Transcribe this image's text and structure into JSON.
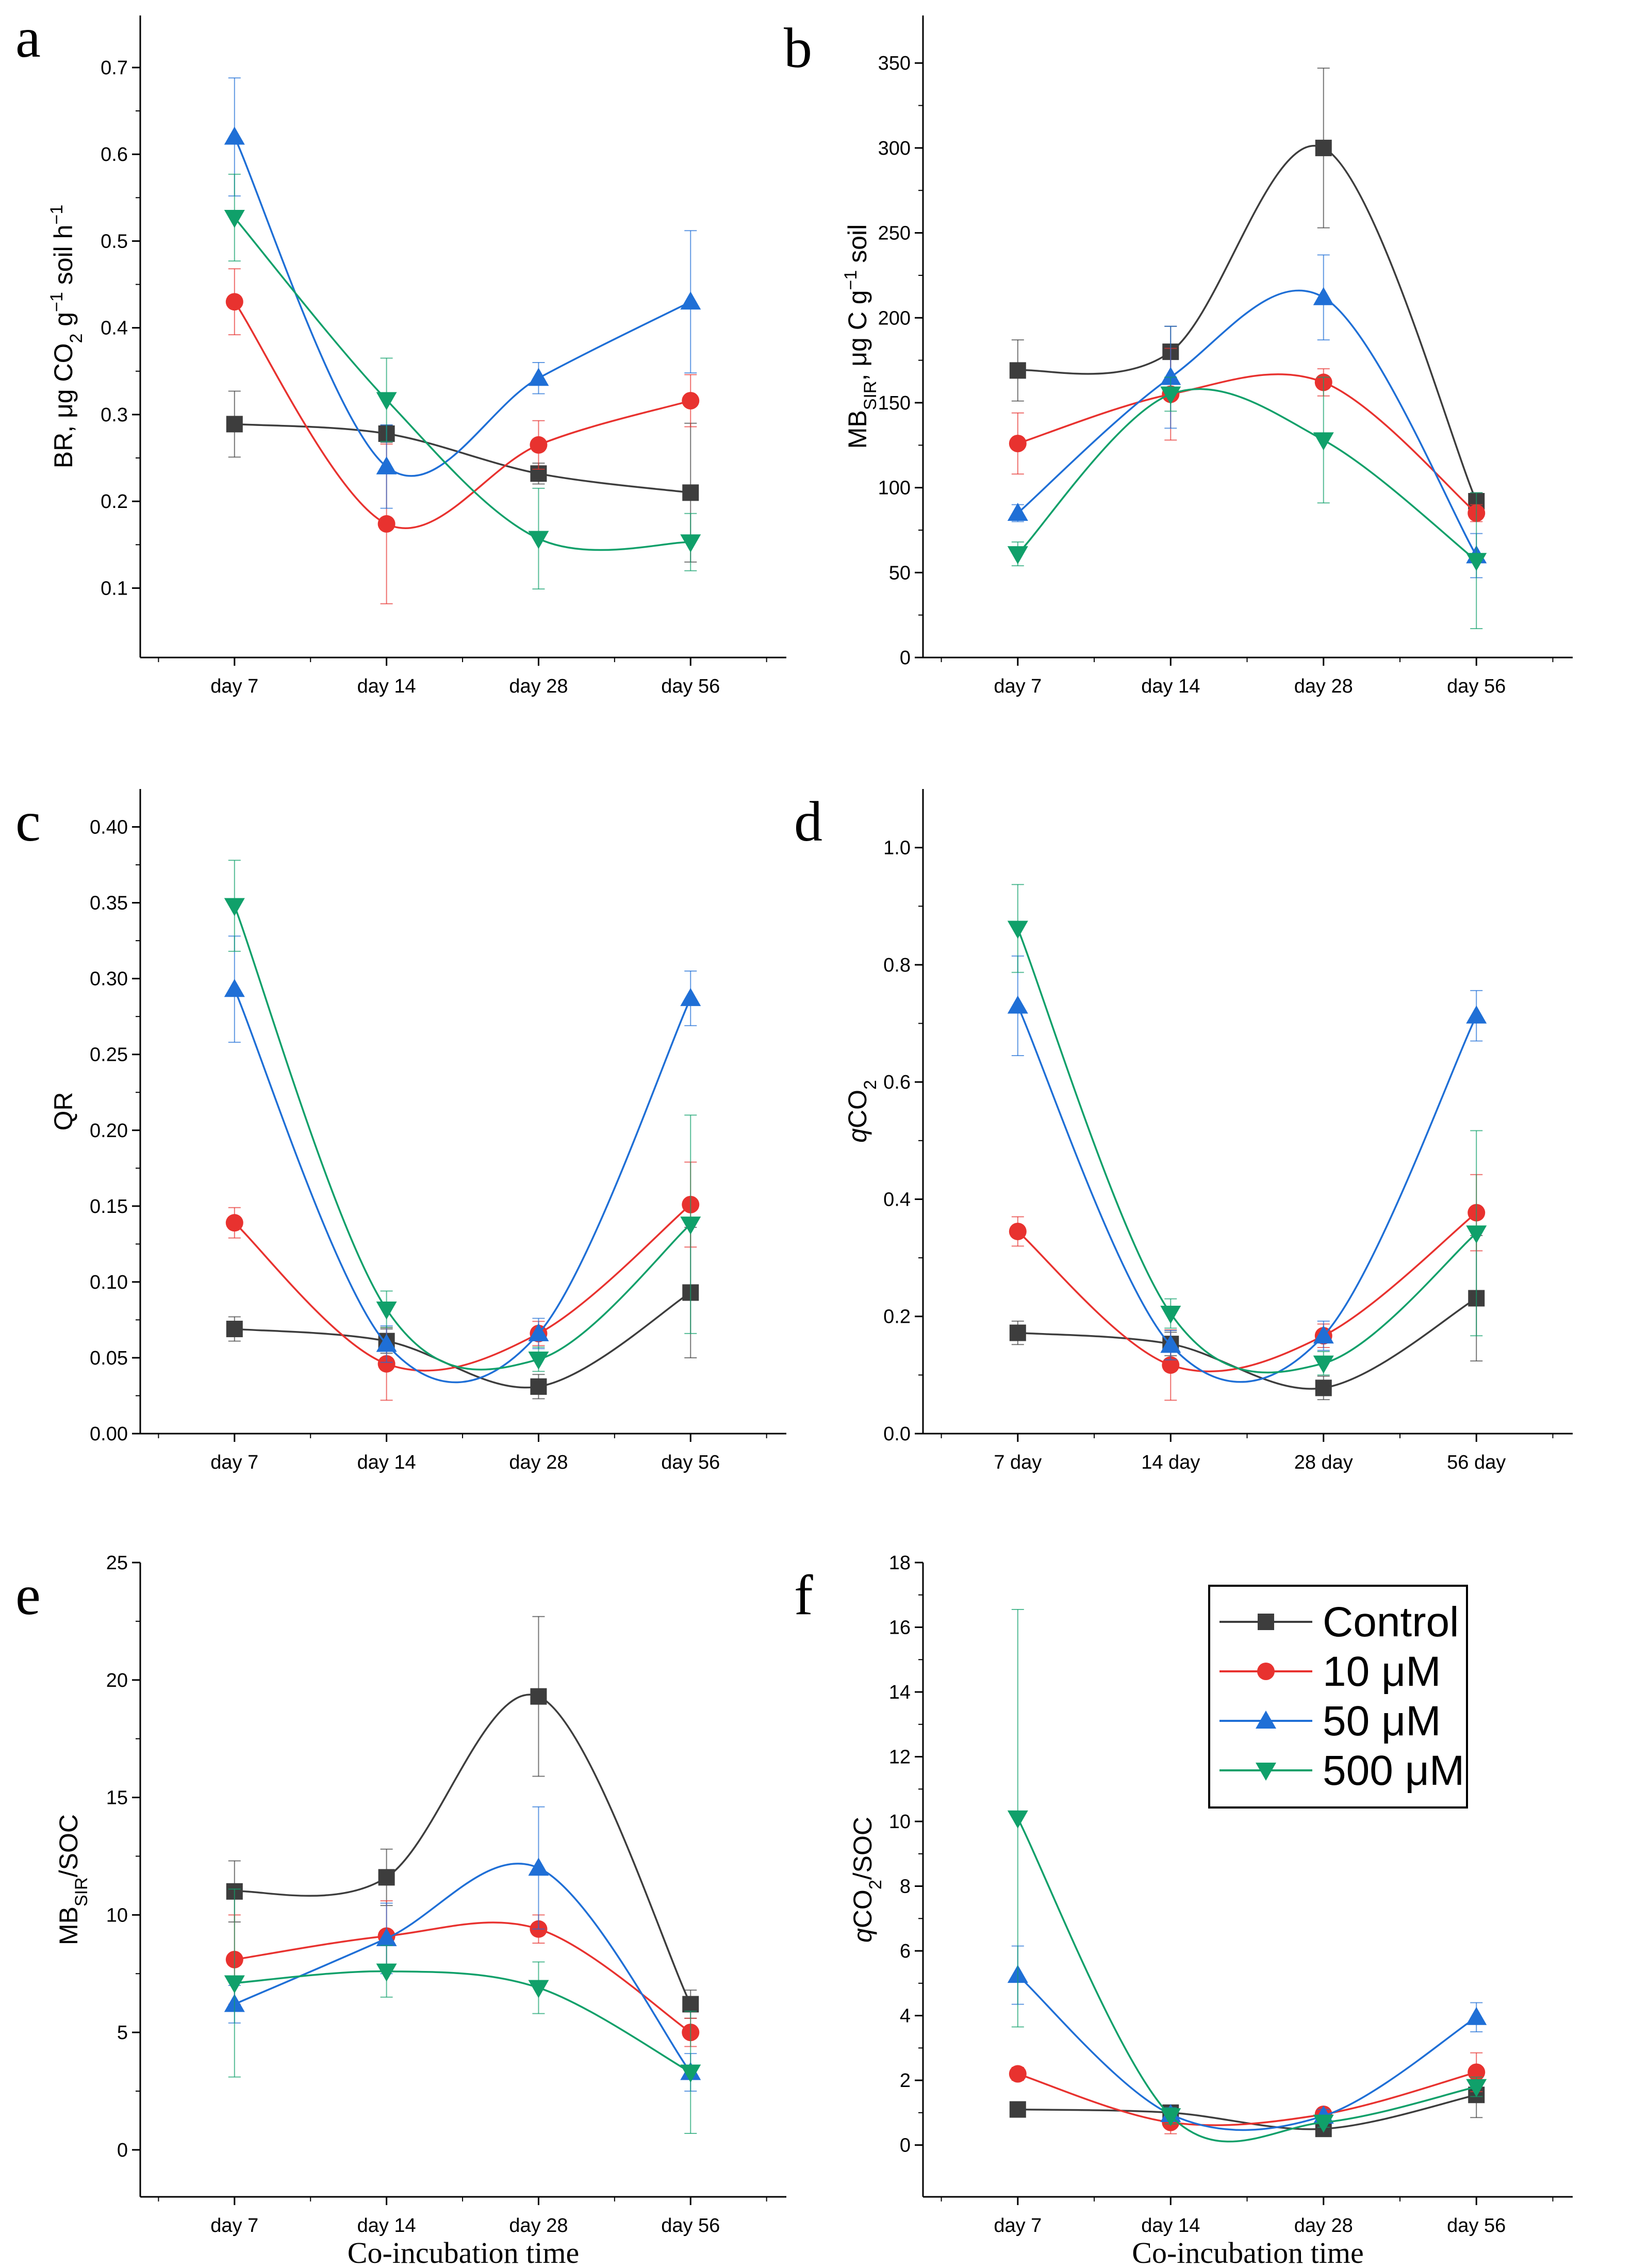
{
  "legend": {
    "entries": [
      {
        "name": "Control",
        "color": "#3d3d3d",
        "marker": "square"
      },
      {
        "name": "10 μM",
        "color": "#e8322f",
        "marker": "circle"
      },
      {
        "name": "50 μM",
        "color": "#1f6fd6",
        "marker": "triangle-up"
      },
      {
        "name": "500 μM",
        "color": "#10a06a",
        "marker": "triangle-down"
      }
    ]
  },
  "chart_data": [
    {
      "letter": "a",
      "type": "line",
      "ylabel_parts": [
        [
          "BR, μg CO",
          ""
        ],
        [
          "2",
          "sub"
        ],
        [
          " g",
          ""
        ],
        [
          "−1",
          "sup"
        ],
        [
          " soil h",
          ""
        ],
        [
          "−1",
          "sup"
        ]
      ],
      "xlabel": "",
      "categories": [
        "day 7",
        "day 14",
        "day 28",
        "day 56"
      ],
      "ylim": [
        0.02,
        0.76
      ],
      "yticks": [
        "0.1",
        "0.2",
        "0.3",
        "0.4",
        "0.5",
        "0.6",
        "0.7"
      ],
      "series": [
        {
          "name": "Control",
          "values": [
            0.289,
            0.278,
            0.232,
            0.21
          ],
          "errors": [
            0.038,
            0.01,
            0.012,
            0.08
          ]
        },
        {
          "name": "10 μM",
          "values": [
            0.43,
            0.174,
            0.265,
            0.316
          ],
          "errors": [
            0.038,
            0.092,
            0.028,
            0.03
          ]
        },
        {
          "name": "50 μM",
          "values": [
            0.62,
            0.24,
            0.342,
            0.43
          ],
          "errors": [
            0.068,
            0.048,
            0.018,
            0.082
          ]
        },
        {
          "name": "500 μM",
          "values": [
            0.527,
            0.317,
            0.157,
            0.153
          ],
          "errors": [
            0.05,
            0.048,
            0.058,
            0.033
          ]
        }
      ]
    },
    {
      "letter": "b",
      "type": "line",
      "ylabel_parts": [
        [
          "MB",
          ""
        ],
        [
          "SIR",
          "sub"
        ],
        [
          ", μg C g",
          ""
        ],
        [
          "−1",
          "sup"
        ],
        [
          " soil",
          ""
        ]
      ],
      "xlabel": "",
      "categories": [
        "day 7",
        "day 14",
        "day 28",
        "day 56"
      ],
      "ylim": [
        0,
        378
      ],
      "yticks": [
        "0",
        "50",
        "100",
        "150",
        "200",
        "250",
        "300",
        "350"
      ],
      "series": [
        {
          "name": "Control",
          "values": [
            169,
            180,
            300,
            92
          ],
          "errors": [
            18,
            15,
            47,
            5
          ]
        },
        {
          "name": "10 μM",
          "values": [
            126,
            155,
            162,
            85
          ],
          "errors": [
            18,
            27,
            8,
            5
          ]
        },
        {
          "name": "50 μM",
          "values": [
            85,
            165,
            212,
            60
          ],
          "errors": [
            5,
            30,
            25,
            13
          ]
        },
        {
          "name": "500 μM",
          "values": [
            61,
            155,
            128,
            57
          ],
          "errors": [
            7,
            10,
            37,
            40
          ]
        }
      ]
    },
    {
      "letter": "c",
      "type": "line",
      "ylabel_parts": [
        [
          "QR",
          ""
        ]
      ],
      "xlabel": "",
      "categories": [
        "day 7",
        "day 14",
        "day 28",
        "day 56"
      ],
      "ylim": [
        0,
        0.425
      ],
      "yticks": [
        "0.00",
        "0.05",
        "0.10",
        "0.15",
        "0.20",
        "0.25",
        "0.30",
        "0.35",
        "0.40"
      ],
      "series": [
        {
          "name": "Control",
          "values": [
            0.069,
            0.061,
            0.031,
            0.093
          ],
          "errors": [
            0.008,
            0.008,
            0.008,
            0.043
          ]
        },
        {
          "name": "10 μM",
          "values": [
            0.139,
            0.046,
            0.066,
            0.151
          ],
          "errors": [
            0.01,
            0.024,
            0.008,
            0.028
          ]
        },
        {
          "name": "50 μM",
          "values": [
            0.293,
            0.059,
            0.066,
            0.287
          ],
          "errors": [
            0.035,
            0.012,
            0.01,
            0.018
          ]
        },
        {
          "name": "500 μM",
          "values": [
            0.348,
            0.082,
            0.049,
            0.138
          ],
          "errors": [
            0.03,
            0.012,
            0.008,
            0.072
          ]
        }
      ]
    },
    {
      "letter": "d",
      "type": "line",
      "ylabel_parts": [
        [
          "q",
          "ital"
        ],
        [
          "CO",
          ""
        ],
        [
          "2",
          "sub"
        ]
      ],
      "xlabel": "",
      "categories": [
        "7 day",
        "14 day",
        "28 day",
        "56 day"
      ],
      "ylim": [
        0,
        1.1
      ],
      "yticks": [
        "0.0",
        "0.2",
        "0.4",
        "0.6",
        "0.8",
        "1.0"
      ],
      "series": [
        {
          "name": "Control",
          "values": [
            0.172,
            0.153,
            0.078,
            0.231
          ],
          "errors": [
            0.02,
            0.02,
            0.02,
            0.107
          ]
        },
        {
          "name": "10 μM",
          "values": [
            0.345,
            0.117,
            0.167,
            0.377
          ],
          "errors": [
            0.025,
            0.06,
            0.02,
            0.065
          ]
        },
        {
          "name": "50 μM",
          "values": [
            0.73,
            0.151,
            0.167,
            0.713
          ],
          "errors": [
            0.085,
            0.025,
            0.025,
            0.043
          ]
        },
        {
          "name": "500 μM",
          "values": [
            0.862,
            0.205,
            0.12,
            0.342
          ],
          "errors": [
            0.075,
            0.025,
            0.02,
            0.175
          ]
        }
      ]
    },
    {
      "letter": "e",
      "type": "line",
      "ylabel_parts": [
        [
          "MB",
          ""
        ],
        [
          "SIR",
          "sub"
        ],
        [
          "/SOC",
          ""
        ]
      ],
      "xlabel": "Co-incubation time",
      "categories": [
        "day 7",
        "day 14",
        "day 28",
        "day 56"
      ],
      "ylim": [
        -2,
        25
      ],
      "yticks": [
        "0",
        "5",
        "10",
        "15",
        "20",
        "25"
      ],
      "series": [
        {
          "name": "Control",
          "values": [
            11,
            11.6,
            19.3,
            6.2
          ],
          "errors": [
            1.3,
            1.2,
            3.4,
            0.6
          ]
        },
        {
          "name": "10 μM",
          "values": [
            8.1,
            9.1,
            9.4,
            5
          ],
          "errors": [
            1.9,
            1.5,
            0.6,
            0.6
          ]
        },
        {
          "name": "50 μM",
          "values": [
            6.2,
            9,
            12,
            3.3
          ],
          "errors": [
            0.8,
            1.5,
            2.6,
            0.8
          ]
        },
        {
          "name": "500 μM",
          "values": [
            7.1,
            7.6,
            6.9,
            3.3
          ],
          "errors": [
            4,
            1.1,
            1.1,
            2.6
          ]
        }
      ]
    },
    {
      "letter": "f",
      "type": "line",
      "ylabel_parts": [
        [
          "q",
          "ital"
        ],
        [
          "CO",
          ""
        ],
        [
          "2",
          "sub"
        ],
        [
          "/SOC",
          ""
        ]
      ],
      "xlabel": "Co-incubation time",
      "categories": [
        "day 7",
        "day 14",
        "day 28",
        "day 56"
      ],
      "ylim": [
        -1.6,
        18
      ],
      "yticks": [
        "0",
        "2",
        "4",
        "6",
        "8",
        "10",
        "12",
        "14",
        "16",
        "18"
      ],
      "series": [
        {
          "name": "Control",
          "values": [
            1.1,
            1,
            0.5,
            1.55
          ],
          "errors": [
            0.1,
            0.2,
            0.15,
            0.7
          ]
        },
        {
          "name": "10 μM",
          "values": [
            2.2,
            0.7,
            0.95,
            2.25
          ],
          "errors": [
            0.2,
            0.35,
            0.1,
            0.6
          ]
        },
        {
          "name": "50 μM",
          "values": [
            5.25,
            0.95,
            0.9,
            3.95
          ],
          "errors": [
            0.9,
            0.2,
            0.2,
            0.45
          ]
        },
        {
          "name": "500 μM",
          "values": [
            10.1,
            0.9,
            0.7,
            1.8
          ],
          "errors": [
            6.45,
            0.25,
            0.15,
            0.3
          ]
        }
      ]
    }
  ]
}
